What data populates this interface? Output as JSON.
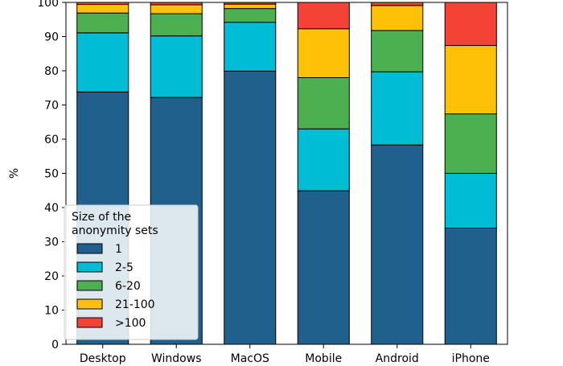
{
  "chart_data": {
    "type": "bar",
    "stacked": true,
    "categories": [
      "Desktop",
      "Windows",
      "MacOS",
      "Mobile",
      "Android",
      "iPhone"
    ],
    "ylabel": "%",
    "ylim": [
      0,
      100
    ],
    "yticks": [
      0,
      10,
      20,
      30,
      40,
      50,
      60,
      70,
      80,
      90,
      100
    ],
    "grid": false,
    "legend": {
      "title": "Size of the\nanonymity sets",
      "placement": "lower-left"
    },
    "series": [
      {
        "name": "1",
        "color": "#20608c",
        "values": [
          73.8,
          72.2,
          79.9,
          44.9,
          58.3,
          34.0
        ]
      },
      {
        "name": "2-5",
        "color": "#00bcd4",
        "values": [
          17.3,
          18.0,
          14.3,
          18.1,
          21.4,
          16.0
        ]
      },
      {
        "name": "6-20",
        "color": "#4caf50",
        "values": [
          5.8,
          6.5,
          4.0,
          15.0,
          12.1,
          17.4
        ]
      },
      {
        "name": "21-100",
        "color": "#ffc107",
        "values": [
          2.5,
          2.6,
          1.3,
          14.3,
          7.3,
          20.0
        ]
      },
      {
        "name": ">100",
        "color": "#f44336",
        "values": [
          0.6,
          0.7,
          0.5,
          7.7,
          0.9,
          12.6
        ]
      }
    ]
  }
}
